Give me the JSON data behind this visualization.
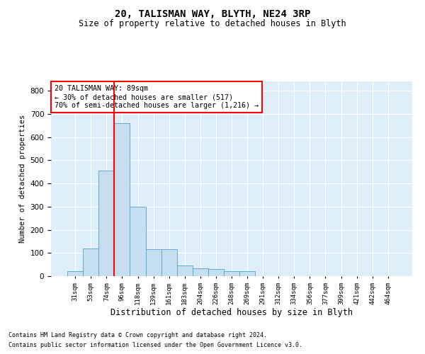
{
  "title": "20, TALISMAN WAY, BLYTH, NE24 3RP",
  "subtitle": "Size of property relative to detached houses in Blyth",
  "xlabel": "Distribution of detached houses by size in Blyth",
  "ylabel": "Number of detached properties",
  "footnote1": "Contains HM Land Registry data © Crown copyright and database right 2024.",
  "footnote2": "Contains public sector information licensed under the Open Government Licence v3.0.",
  "annotation_line1": "20 TALISMAN WAY: 89sqm",
  "annotation_line2": "← 30% of detached houses are smaller (517)",
  "annotation_line3": "70% of semi-detached houses are larger (1,216) →",
  "bar_color": "#c5dff0",
  "bar_edge_color": "#5a9fc8",
  "vline_color": "red",
  "vline_x_idx": 3,
  "categories": [
    "31sqm",
    "53sqm",
    "74sqm",
    "96sqm",
    "118sqm",
    "139sqm",
    "161sqm",
    "183sqm",
    "204sqm",
    "226sqm",
    "248sqm",
    "269sqm",
    "291sqm",
    "312sqm",
    "334sqm",
    "356sqm",
    "377sqm",
    "399sqm",
    "421sqm",
    "442sqm",
    "464sqm"
  ],
  "values": [
    20,
    120,
    455,
    660,
    300,
    115,
    115,
    45,
    35,
    30,
    20,
    20,
    0,
    0,
    0,
    0,
    0,
    0,
    0,
    0,
    0
  ],
  "ylim": [
    0,
    840
  ],
  "yticks": [
    0,
    100,
    200,
    300,
    400,
    500,
    600,
    700,
    800
  ],
  "background_color": "#ddeef8",
  "fig_background": "#ffffff"
}
